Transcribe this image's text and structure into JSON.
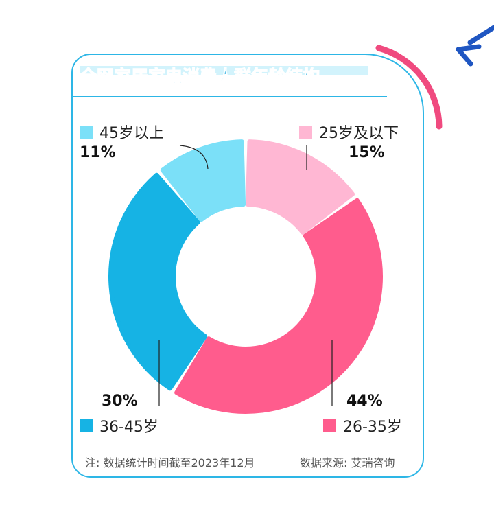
{
  "chart_data": {
    "type": "pie",
    "title": "全网家居家电消费人群年龄结构",
    "categories": [
      "25岁及以下",
      "26-35岁",
      "36-45岁",
      "45岁以上"
    ],
    "values": [
      15,
      44,
      30,
      11
    ],
    "value_labels": [
      "15%",
      "44%",
      "30%",
      "11%"
    ],
    "colors": [
      "#ffb7d3",
      "#ff5c8d",
      "#16b3e4",
      "#7be0f8"
    ],
    "legend_placement": "corners",
    "donut": true
  },
  "footer": {
    "note": "注: 数据统计时间截至2023年12月",
    "source": "数据来源: 艾瑞咨询"
  },
  "decor": {
    "accent_pink": "#f04a7f",
    "accent_blue": "#1f56c2"
  }
}
